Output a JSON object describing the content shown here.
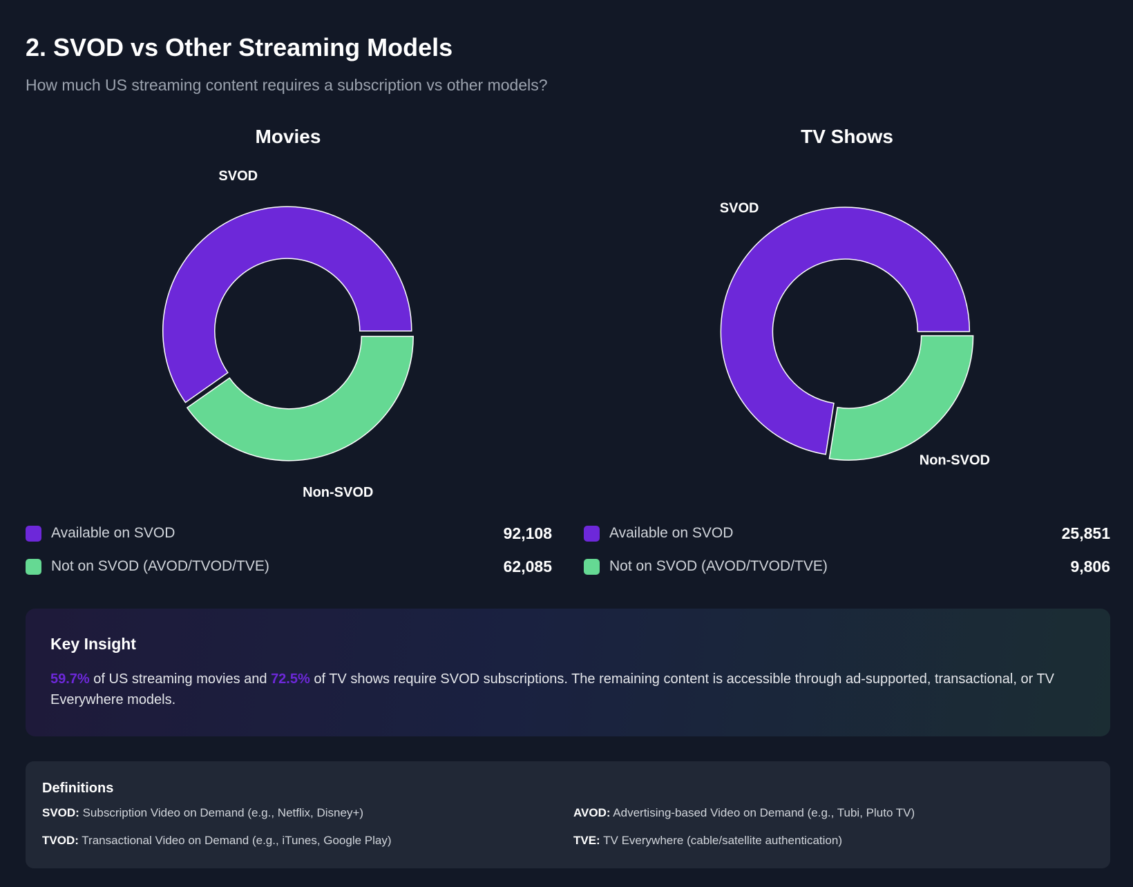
{
  "header": {
    "title": "2. SVOD vs Other Streaming Models",
    "subtitle": "How much US streaming content requires a subscription vs other models?"
  },
  "colors": {
    "svod": "#6d28d9",
    "non_svod": "#65d993",
    "background": "#121826"
  },
  "chart_data": [
    {
      "type": "pie",
      "variant": "donut",
      "title": "Movies",
      "categories": [
        "SVOD",
        "Non-SVOD"
      ],
      "values": [
        92108,
        62085
      ],
      "colors": [
        "#6d28d9",
        "#65d993"
      ]
    },
    {
      "type": "pie",
      "variant": "donut",
      "title": "TV Shows",
      "categories": [
        "SVOD",
        "Non-SVOD"
      ],
      "values": [
        25851,
        9806
      ],
      "colors": [
        "#6d28d9",
        "#65d993"
      ]
    }
  ],
  "legends": [
    {
      "items": [
        {
          "label": "Available on SVOD",
          "value": "92,108"
        },
        {
          "label": "Not on SVOD (AVOD/TVOD/TVE)",
          "value": "62,085"
        }
      ]
    },
    {
      "items": [
        {
          "label": "Available on SVOD",
          "value": "25,851"
        },
        {
          "label": "Not on SVOD (AVOD/TVOD/TVE)",
          "value": "9,806"
        }
      ]
    }
  ],
  "insight": {
    "title": "Key Insight",
    "pct_movies": "59.7%",
    "text_1": " of US streaming movies and ",
    "pct_tv": "72.5%",
    "text_2": " of TV shows require SVOD subscriptions. The remaining content is accessible through ad-supported, transactional, or TV Everywhere models."
  },
  "definitions": {
    "title": "Definitions",
    "items": [
      {
        "term": "SVOD:",
        "desc": " Subscription Video on Demand (e.g., Netflix, Disney+)"
      },
      {
        "term": "AVOD:",
        "desc": " Advertising-based Video on Demand (e.g., Tubi, Pluto TV)"
      },
      {
        "term": "TVOD:",
        "desc": " Transactional Video on Demand (e.g., iTunes, Google Play)"
      },
      {
        "term": "TVE:",
        "desc": " TV Everywhere (cable/satellite authentication)"
      }
    ]
  }
}
